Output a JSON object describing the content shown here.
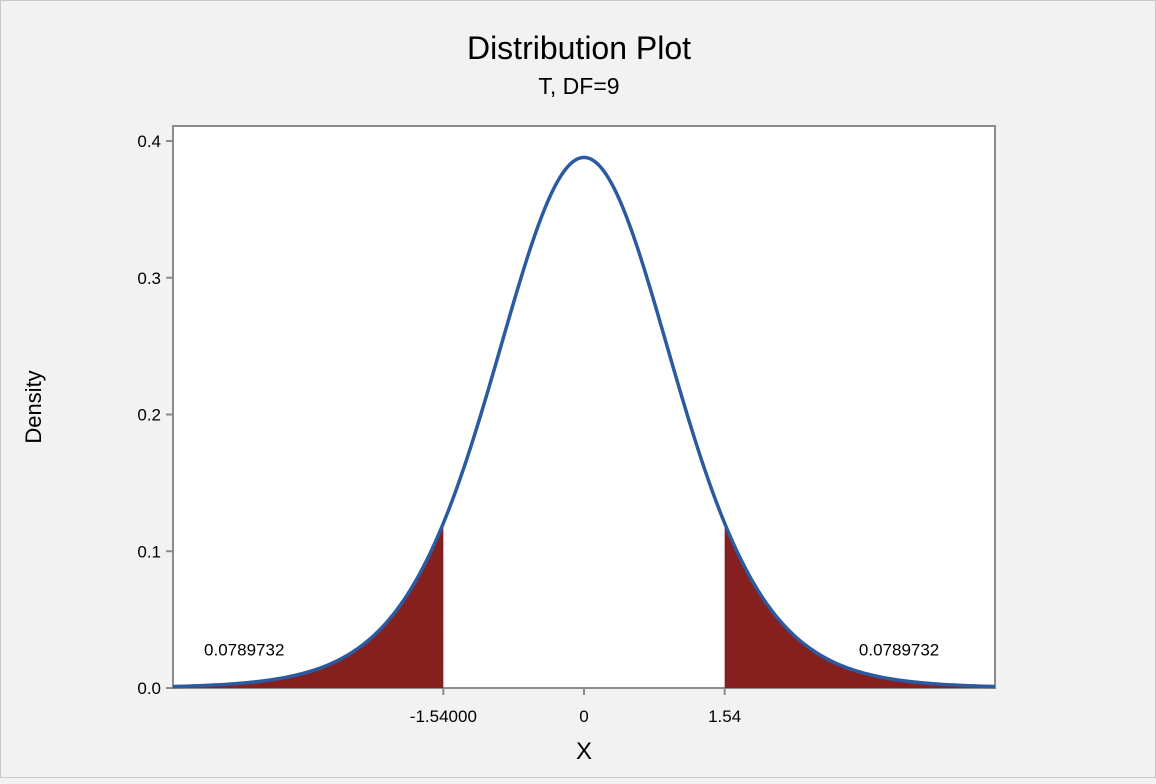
{
  "chart_data": {
    "type": "area",
    "title": "Distribution Plot",
    "subtitle": "T, DF=9",
    "xlabel": "X",
    "ylabel": "Density",
    "distribution": {
      "family": "T",
      "df": 9
    },
    "xlim": [
      -4.5,
      4.5
    ],
    "ylim": [
      0,
      0.4
    ],
    "y_ticks": [
      "0.0",
      "0.1",
      "0.2",
      "0.3",
      "0.4"
    ],
    "x_ticks": [
      {
        "value": -1.54,
        "label": "-1.54000"
      },
      {
        "value": 0,
        "label": "0"
      },
      {
        "value": 1.54,
        "label": "1.54"
      }
    ],
    "peak_density": 0.388,
    "shaded_regions": [
      {
        "from": -4.5,
        "to": -1.54,
        "area_label": "0.0789732",
        "label_x": -3.72,
        "label_y": 0.028
      },
      {
        "from": 1.54,
        "to": 4.5,
        "area_label": "0.0789732",
        "label_x": 3.45,
        "label_y": 0.028
      }
    ],
    "curve_color": "#2b5aa0",
    "shade_color": "#86201e",
    "grid": false,
    "legend": "none"
  }
}
